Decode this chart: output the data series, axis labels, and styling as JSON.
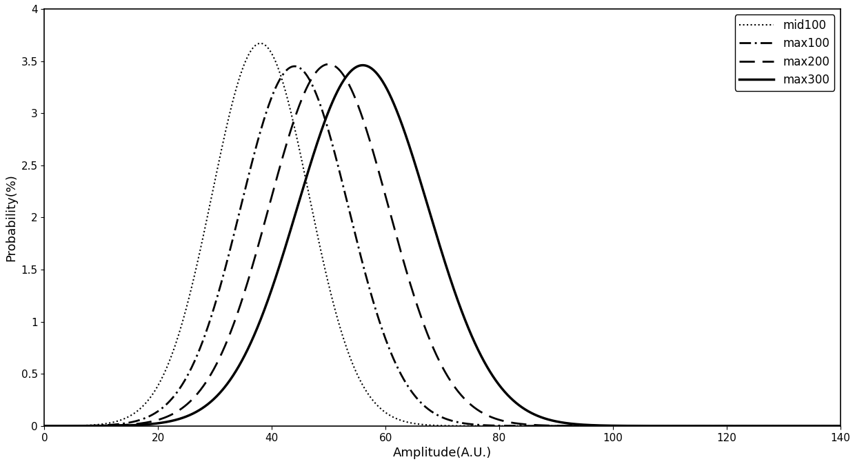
{
  "title": "",
  "xlabel": "Amplitude(A.U.)",
  "ylabel": "Probability(%)",
  "xlim": [
    0,
    140
  ],
  "ylim": [
    0,
    4
  ],
  "yticks": [
    0,
    0.5,
    1,
    1.5,
    2,
    2.5,
    3,
    3.5,
    4
  ],
  "xticks": [
    0,
    20,
    40,
    60,
    80,
    100,
    120,
    140
  ],
  "curves": [
    {
      "label": "mid100",
      "mean": 38,
      "std": 8.5,
      "scale": 3.67,
      "linestyle": "dotted",
      "linewidth": 1.5,
      "color": "#000000",
      "dashes": null
    },
    {
      "label": "max100",
      "mean": 44,
      "std": 9.5,
      "scale": 3.45,
      "linestyle": "dashdot",
      "linewidth": 2.0,
      "color": "#000000",
      "dashes": [
        6,
        2,
        1,
        2
      ]
    },
    {
      "label": "max200",
      "mean": 50,
      "std": 10.5,
      "scale": 3.47,
      "linestyle": "dashed",
      "linewidth": 2.0,
      "color": "#000000",
      "dashes": [
        8,
        4
      ]
    },
    {
      "label": "max300",
      "mean": 56,
      "std": 11.5,
      "scale": 3.46,
      "linestyle": "solid",
      "linewidth": 2.5,
      "color": "#000000",
      "dashes": null
    }
  ],
  "legend_loc": "upper right",
  "background_color": "#ffffff",
  "figure_width": 12.4,
  "figure_height": 6.73,
  "dpi": 100
}
